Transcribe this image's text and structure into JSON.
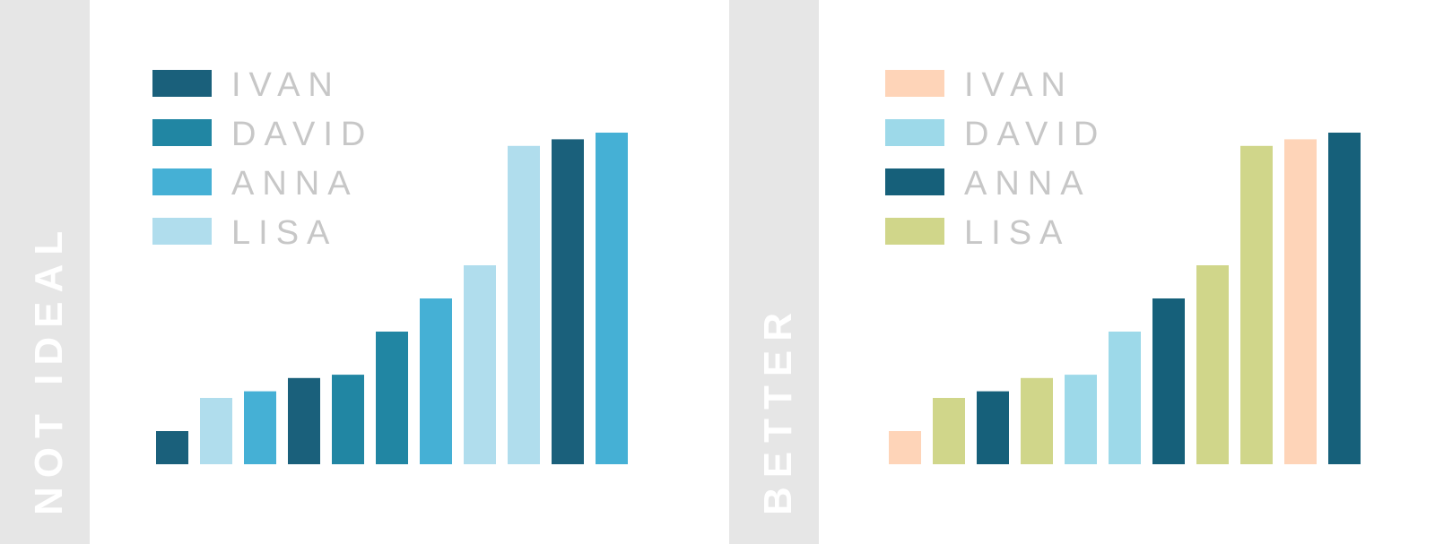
{
  "panels": [
    {
      "id": "not-ideal",
      "label": "NOT IDEAL",
      "colors": {
        "IVAN": "#1a607b",
        "DAVID": "#2186a3",
        "ANNA": "#45b0d5",
        "LISA": "#b0dded"
      }
    },
    {
      "id": "better",
      "label": "BETTER",
      "colors": {
        "IVAN": "#fed4b8",
        "DAVID": "#9dd9e9",
        "ANNA": "#16607a",
        "LISA": "#d0d68a"
      }
    }
  ],
  "chart_data": [
    {
      "type": "bar",
      "title": "",
      "xlabel": "",
      "ylabel": "",
      "ylim": [
        0,
        100
      ],
      "legend_position": "top-left",
      "legend": [
        "IVAN",
        "DAVID",
        "ANNA",
        "LISA"
      ],
      "bars": [
        {
          "series": "IVAN",
          "value": 10
        },
        {
          "series": "LISA",
          "value": 20
        },
        {
          "series": "ANNA",
          "value": 22
        },
        {
          "series": "IVAN",
          "value": 26
        },
        {
          "series": "DAVID",
          "value": 27
        },
        {
          "series": "DAVID",
          "value": 40
        },
        {
          "series": "ANNA",
          "value": 50
        },
        {
          "series": "LISA",
          "value": 60
        },
        {
          "series": "LISA",
          "value": 96
        },
        {
          "series": "IVAN",
          "value": 98
        },
        {
          "series": "ANNA",
          "value": 100
        }
      ]
    },
    {
      "type": "bar",
      "title": "",
      "xlabel": "",
      "ylabel": "",
      "ylim": [
        0,
        100
      ],
      "legend_position": "top-left",
      "legend": [
        "IVAN",
        "DAVID",
        "ANNA",
        "LISA"
      ],
      "bars": [
        {
          "series": "IVAN",
          "value": 10
        },
        {
          "series": "LISA",
          "value": 20
        },
        {
          "series": "ANNA",
          "value": 22
        },
        {
          "series": "LISA",
          "value": 26
        },
        {
          "series": "DAVID",
          "value": 27
        },
        {
          "series": "DAVID",
          "value": 40
        },
        {
          "series": "ANNA",
          "value": 50
        },
        {
          "series": "LISA",
          "value": 60
        },
        {
          "series": "LISA",
          "value": 96
        },
        {
          "series": "IVAN",
          "value": 98
        },
        {
          "series": "ANNA",
          "value": 100
        }
      ]
    }
  ]
}
